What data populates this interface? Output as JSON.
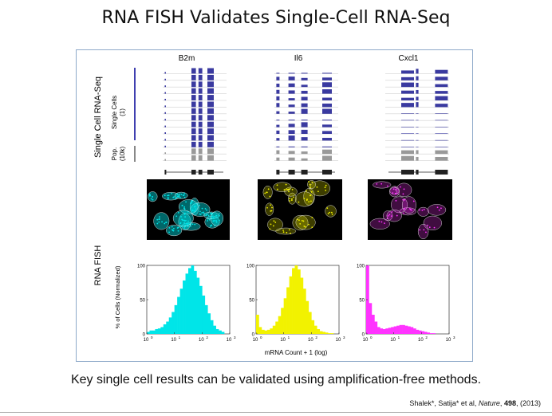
{
  "slide": {
    "title": "RNA FISH Validates Single-Cell RNA-Seq",
    "caption": "Key single cell results can be validated using amplification-free methods.",
    "citation": {
      "authors": "Shalek*, Satija* et al, ",
      "journal": "Nature",
      "volume": "498",
      "year": ", (2013)"
    }
  },
  "figure": {
    "genes": [
      "B2m",
      "Il6",
      "Cxcl1"
    ],
    "row_labels": {
      "seq": "Single Cell RNA-Seq",
      "single_cells": "Single Cells",
      "single_cells_n": "(1)",
      "pop": "Pop.",
      "pop_n": "(10k)",
      "fish": "RNA FISH"
    },
    "colors": {
      "track_blue": "#3a3aa0",
      "track_gray": "#999999",
      "b2m": "#00e5e8",
      "il6": "#f2f200",
      "cxcl1": "#ff33ff"
    },
    "histogram_axes": {
      "xlabel": "mRNA Count + 1 (log)",
      "ylabel": "% of Cells (Normalized)",
      "yticks": [
        "0",
        "50",
        "100"
      ],
      "xtick_base": "10",
      "xtick_exp": [
        "0",
        "1",
        "2",
        "3"
      ]
    }
  },
  "chart_data": [
    {
      "type": "bar",
      "title": "B2m",
      "xlabel": "mRNA Count + 1 (log)",
      "ylabel": "% of Cells (Normalized)",
      "xscale": "log",
      "xlim": [
        1,
        1000
      ],
      "ylim": [
        0,
        100
      ],
      "color": "#00e5e8",
      "bins_log10": [
        0.0,
        0.1,
        0.2,
        0.3,
        0.4,
        0.5,
        0.6,
        0.7,
        0.8,
        0.9,
        1.0,
        1.1,
        1.2,
        1.3,
        1.4,
        1.5,
        1.6,
        1.7,
        1.8,
        1.9,
        2.0,
        2.1,
        2.2,
        2.3,
        2.4,
        2.5,
        2.6,
        2.7
      ],
      "values": [
        3,
        5,
        5,
        7,
        8,
        10,
        14,
        18,
        24,
        32,
        42,
        54,
        66,
        78,
        88,
        96,
        100,
        92,
        82,
        70,
        56,
        42,
        30,
        20,
        12,
        7,
        5,
        3
      ]
    },
    {
      "type": "bar",
      "title": "Il6",
      "xlabel": "mRNA Count + 1 (log)",
      "ylabel": "% of Cells (Normalized)",
      "xscale": "log",
      "xlim": [
        1,
        1000
      ],
      "ylim": [
        0,
        100
      ],
      "color": "#f2f200",
      "bins_log10": [
        0.0,
        0.1,
        0.2,
        0.3,
        0.4,
        0.5,
        0.6,
        0.7,
        0.8,
        0.9,
        1.0,
        1.1,
        1.2,
        1.3,
        1.4,
        1.5,
        1.6,
        1.7,
        1.8,
        1.9,
        2.0,
        2.1,
        2.2,
        2.3,
        2.4,
        2.5,
        2.6,
        2.7
      ],
      "values": [
        28,
        10,
        6,
        5,
        6,
        8,
        12,
        18,
        26,
        38,
        52,
        68,
        84,
        96,
        100,
        94,
        82,
        66,
        48,
        32,
        20,
        12,
        7,
        4,
        3,
        2,
        1,
        1
      ]
    },
    {
      "type": "bar",
      "title": "Cxcl1",
      "xlabel": "mRNA Count + 1 (log)",
      "ylabel": "% of Cells (Normalized)",
      "xscale": "log",
      "xlim": [
        1,
        1000
      ],
      "ylim": [
        0,
        100
      ],
      "color": "#ff33ff",
      "bins_log10": [
        0.0,
        0.1,
        0.2,
        0.3,
        0.4,
        0.5,
        0.6,
        0.7,
        0.8,
        0.9,
        1.0,
        1.1,
        1.2,
        1.3,
        1.4,
        1.5,
        1.6,
        1.7,
        1.8,
        1.9,
        2.0,
        2.1,
        2.2,
        2.3,
        2.4,
        2.5,
        2.6,
        2.7
      ],
      "values": [
        100,
        45,
        28,
        18,
        10,
        8,
        7,
        8,
        9,
        10,
        11,
        12,
        13,
        13,
        12,
        11,
        10,
        8,
        6,
        5,
        4,
        3,
        2,
        1,
        1,
        0,
        0,
        0
      ]
    }
  ]
}
